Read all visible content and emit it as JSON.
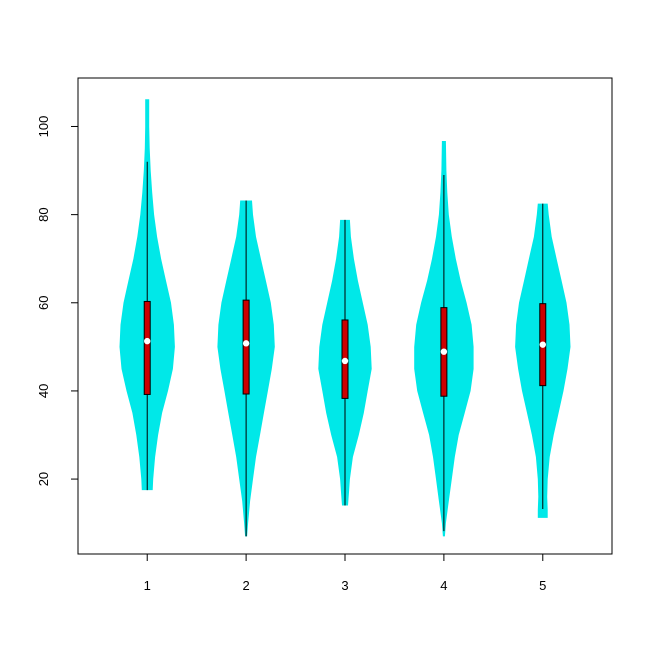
{
  "chart_data": {
    "type": "violin",
    "title": "",
    "xlabel": "",
    "ylabel": "",
    "categories": [
      "1",
      "2",
      "3",
      "4",
      "5"
    ],
    "xlim": [
      0.3,
      5.7
    ],
    "ylim": [
      3,
      111
    ],
    "y_ticks": [
      "20",
      "40",
      "60",
      "80",
      "100"
    ],
    "colors": {
      "violin": "#00e8e8",
      "box": "#cc0000",
      "median": "#ffffff",
      "whisker": "#000000"
    },
    "violins": [
      {
        "category": "1",
        "min": 17.5,
        "q1": 39.2,
        "median": 51.3,
        "q3": 60.3,
        "max": 106.2,
        "whisker_low": 17.5,
        "whisker_high": 92.0,
        "profile": [
          [
            17.5,
            0.055
          ],
          [
            20,
            0.06
          ],
          [
            25,
            0.08
          ],
          [
            30,
            0.11
          ],
          [
            35,
            0.15
          ],
          [
            40,
            0.21
          ],
          [
            45,
            0.26
          ],
          [
            50,
            0.28
          ],
          [
            55,
            0.27
          ],
          [
            60,
            0.24
          ],
          [
            65,
            0.19
          ],
          [
            70,
            0.14
          ],
          [
            75,
            0.1
          ],
          [
            80,
            0.07
          ],
          [
            85,
            0.05
          ],
          [
            90,
            0.035
          ],
          [
            95,
            0.025
          ],
          [
            100,
            0.02
          ],
          [
            106.2,
            0.02
          ]
        ]
      },
      {
        "category": "2",
        "min": 7.0,
        "q1": 39.3,
        "median": 50.8,
        "q3": 60.6,
        "max": 83.2,
        "whisker_low": 7.0,
        "whisker_high": 83.2,
        "profile": [
          [
            7,
            0.01
          ],
          [
            10,
            0.02
          ],
          [
            15,
            0.04
          ],
          [
            20,
            0.07
          ],
          [
            25,
            0.1
          ],
          [
            30,
            0.14
          ],
          [
            35,
            0.18
          ],
          [
            40,
            0.22
          ],
          [
            45,
            0.26
          ],
          [
            50,
            0.29
          ],
          [
            55,
            0.28
          ],
          [
            60,
            0.25
          ],
          [
            65,
            0.2
          ],
          [
            70,
            0.15
          ],
          [
            75,
            0.1
          ],
          [
            80,
            0.07
          ],
          [
            83.2,
            0.06
          ]
        ]
      },
      {
        "category": "3",
        "min": 14.0,
        "q1": 38.3,
        "median": 46.8,
        "q3": 56.1,
        "max": 78.8,
        "whisker_low": 14.0,
        "whisker_high": 78.8,
        "profile": [
          [
            14,
            0.03
          ],
          [
            17,
            0.04
          ],
          [
            20,
            0.05
          ],
          [
            25,
            0.08
          ],
          [
            30,
            0.14
          ],
          [
            35,
            0.19
          ],
          [
            40,
            0.23
          ],
          [
            45,
            0.27
          ],
          [
            50,
            0.26
          ],
          [
            55,
            0.23
          ],
          [
            60,
            0.18
          ],
          [
            65,
            0.13
          ],
          [
            70,
            0.09
          ],
          [
            75,
            0.06
          ],
          [
            78.8,
            0.05
          ]
        ]
      },
      {
        "category": "4",
        "min": 7.0,
        "q1": 38.8,
        "median": 48.9,
        "q3": 58.9,
        "max": 96.7,
        "whisker_low": 8.2,
        "whisker_high": 89.0,
        "profile": [
          [
            7,
            0.01
          ],
          [
            10,
            0.02
          ],
          [
            15,
            0.05
          ],
          [
            20,
            0.08
          ],
          [
            25,
            0.11
          ],
          [
            30,
            0.15
          ],
          [
            35,
            0.21
          ],
          [
            40,
            0.27
          ],
          [
            45,
            0.3
          ],
          [
            50,
            0.3
          ],
          [
            55,
            0.28
          ],
          [
            60,
            0.23
          ],
          [
            65,
            0.17
          ],
          [
            70,
            0.12
          ],
          [
            75,
            0.08
          ],
          [
            80,
            0.05
          ],
          [
            85,
            0.035
          ],
          [
            90,
            0.025
          ],
          [
            96.7,
            0.02
          ]
        ]
      },
      {
        "category": "5",
        "min": 11.2,
        "q1": 41.2,
        "median": 50.5,
        "q3": 59.8,
        "max": 82.5,
        "whisker_low": 13.2,
        "whisker_high": 82.5,
        "profile": [
          [
            11.2,
            0.05
          ],
          [
            13,
            0.05
          ],
          [
            16,
            0.045
          ],
          [
            20,
            0.05
          ],
          [
            25,
            0.07
          ],
          [
            30,
            0.11
          ],
          [
            35,
            0.16
          ],
          [
            40,
            0.21
          ],
          [
            45,
            0.25
          ],
          [
            50,
            0.28
          ],
          [
            55,
            0.27
          ],
          [
            60,
            0.24
          ],
          [
            65,
            0.19
          ],
          [
            70,
            0.14
          ],
          [
            75,
            0.09
          ],
          [
            80,
            0.06
          ],
          [
            82.5,
            0.05
          ]
        ]
      }
    ]
  }
}
